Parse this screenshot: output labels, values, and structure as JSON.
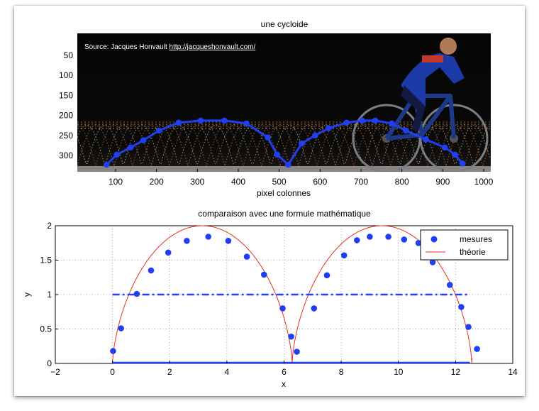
{
  "chart_data": [
    {
      "type": "scatter",
      "title": "une cycloide",
      "xlabel": "pixel colonnes",
      "ylabel": "",
      "xlim": [
        0,
        1060
      ],
      "ylim": [
        350,
        0
      ],
      "x_ticks": [
        100,
        200,
        300,
        400,
        500,
        600,
        700,
        800,
        900,
        1000
      ],
      "y_ticks": [
        50,
        100,
        150,
        200,
        250,
        300
      ],
      "annotation": {
        "prefix": "Source: Jacques Honvault ",
        "link": "http://jacqueshonvault.com/"
      },
      "series": [
        {
          "color": "#1f3ff0",
          "x": [
            78,
            103,
            137,
            168,
            206,
            254,
            308,
            366,
            420,
            472,
            495,
            522,
            555,
            588,
            621,
            665,
            703,
            735,
            775,
            810,
            858,
            905,
            930,
            948
          ],
          "y": [
            323,
            298,
            280,
            262,
            238,
            218,
            213,
            213,
            220,
            255,
            298,
            323,
            270,
            250,
            232,
            218,
            213,
            213,
            220,
            238,
            260,
            280,
            298,
            320
          ]
        }
      ]
    },
    {
      "type": "scatter",
      "title": "comparaison avec une formule mathématique",
      "xlabel": "x",
      "ylabel": "y",
      "xlim": [
        -2,
        14
      ],
      "ylim": [
        0,
        2
      ],
      "x_ticks": [
        -2,
        0,
        2,
        4,
        6,
        8,
        10,
        12,
        14
      ],
      "y_ticks": [
        0,
        0.5,
        1,
        1.5,
        2
      ],
      "grid": true,
      "legend_position": "top-right",
      "series": [
        {
          "name": "mesures",
          "style": "markers",
          "color": "#1f3ff0",
          "x": [
            0.02,
            0.3,
            0.85,
            1.35,
            1.95,
            2.6,
            3.35,
            4.05,
            4.7,
            5.3,
            5.95,
            6.25,
            6.45,
            7.05,
            7.5,
            8.1,
            8.55,
            9.0,
            9.65,
            10.2,
            10.7,
            11.2,
            11.8,
            12.2,
            12.45,
            12.75
          ],
          "y": [
            0.18,
            0.51,
            1.01,
            1.35,
            1.61,
            1.78,
            1.84,
            1.78,
            1.55,
            1.29,
            0.8,
            0.39,
            0.17,
            0.8,
            1.28,
            1.57,
            1.79,
            1.84,
            1.84,
            1.8,
            1.75,
            1.47,
            1.14,
            0.82,
            0.53,
            0.21
          ]
        },
        {
          "name": "théorie",
          "style": "cycloid",
          "color": "#e8311e",
          "radius": 1,
          "x_range": [
            0,
            12.8
          ]
        },
        {
          "style": "dashdot",
          "color": "#1f3ff0",
          "x": [
            0,
            12.5
          ],
          "y": [
            1,
            1
          ]
        },
        {
          "style": "solid",
          "color": "#1f3ff0",
          "x": [
            0,
            12.5
          ],
          "y": [
            0,
            0
          ]
        }
      ]
    }
  ]
}
